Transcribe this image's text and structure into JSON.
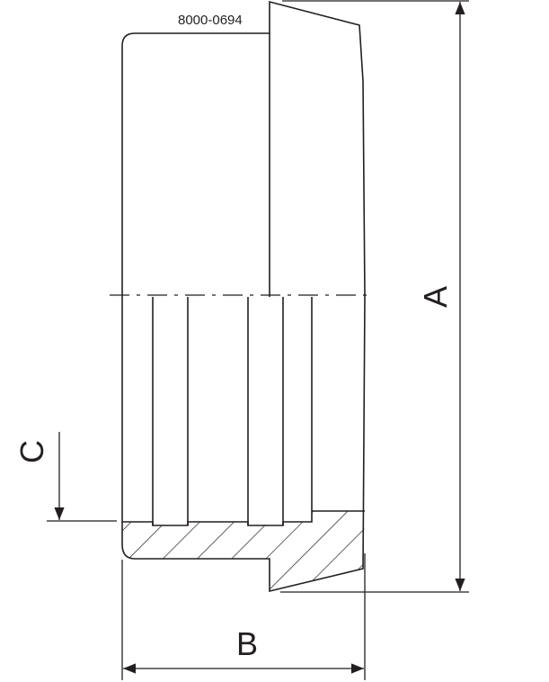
{
  "drawing": {
    "part_number": "8000-0694",
    "dimensions": {
      "a_label": "A",
      "b_label": "B",
      "c_label": "C"
    },
    "line_color": "#231f20"
  }
}
